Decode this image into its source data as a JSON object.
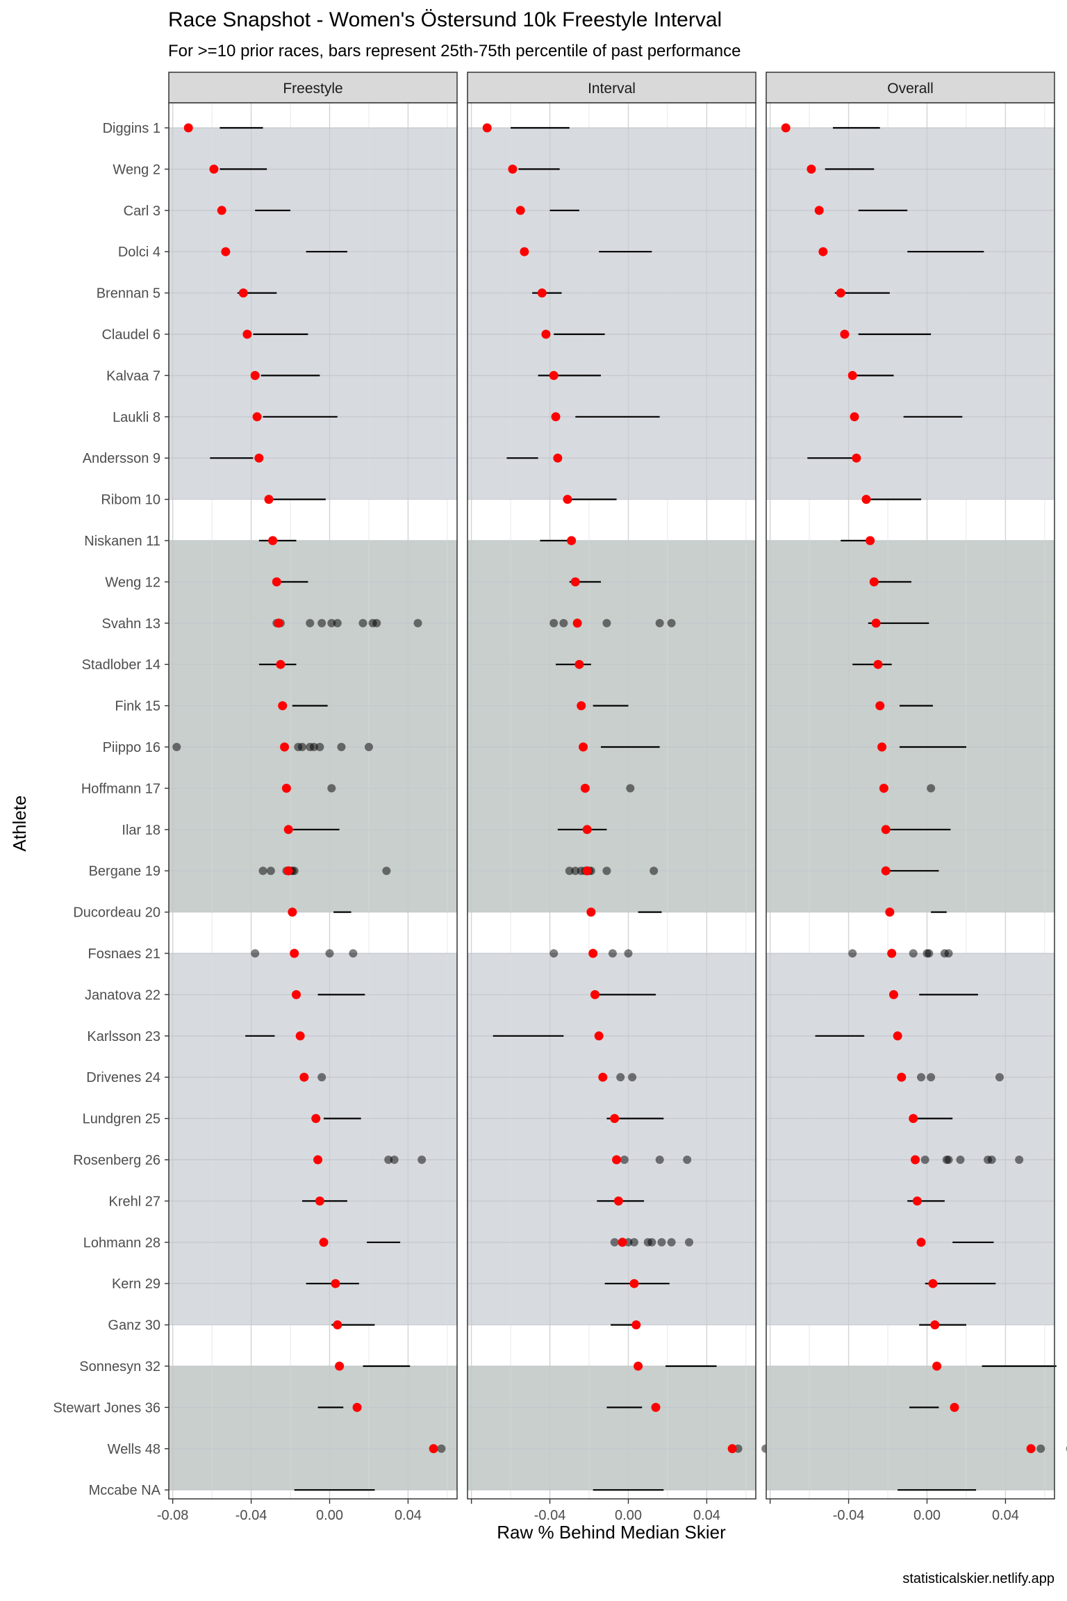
{
  "title": "Race Snapshot -  Women's Östersund 10k Freestyle Interval",
  "subtitle": "For >=10 prior races, bars represent 25th-75th percentile of past performance",
  "caption": "statisticalskier.netlify.app",
  "colors": {
    "current_point": "#ff0000",
    "past_point": "#000000",
    "band_grey": "#d7dbe0",
    "band_green": "#c8cfcd",
    "panel_border": "#333333",
    "grid": "#ebebeb",
    "strip_fill": "#d9d9d9"
  },
  "chart_data": {
    "type": "scatter",
    "xlabel": "Raw % Behind Median Skier",
    "ylabel": "Athlete",
    "xlim": [
      -0.082,
      0.065
    ],
    "x_ticks": [
      -0.08,
      -0.04,
      0.0,
      0.04
    ],
    "x_tick_labels": [
      "-0.08",
      "-0.04",
      "0.00",
      "0.04"
    ],
    "grid": true,
    "panels": [
      "Freestyle",
      "Interval",
      "Overall"
    ],
    "athletes": [
      "Diggins 1",
      "Weng 2",
      "Carl 3",
      "Dolci 4",
      "Brennan 5",
      "Claudel 6",
      "Kalvaa 7",
      "Laukli 8",
      "Andersson 9",
      "Ribom 10",
      "Niskanen 11",
      "Weng 12",
      "Svahn 13",
      "Stadlober 14",
      "Fink 15",
      "Piippo 16",
      "Hoffmann 17",
      "Ilar 18",
      "Bergane 19",
      "Ducordeau 20",
      "Fosnaes 21",
      "Janatova 22",
      "Karlsson 23",
      "Drivenes 24",
      "Lundgren 25",
      "Rosenberg 26",
      "Krehl 27",
      "Lohmann 28",
      "Kern 29",
      "Ganz 30",
      "Sonnesyn 32",
      "Stewart Jones 36",
      "Wells 48",
      "Mccabe NA"
    ],
    "bands": [
      {
        "from": 0,
        "to": 9,
        "color": "grey"
      },
      {
        "from": 10,
        "to": 19,
        "color": "green"
      },
      {
        "from": 20,
        "to": 29,
        "color": "grey"
      },
      {
        "from": 30,
        "to": 33,
        "color": "green"
      }
    ],
    "current": [
      -0.072,
      -0.059,
      -0.055,
      -0.053,
      -0.044,
      -0.042,
      -0.038,
      -0.037,
      -0.036,
      -0.031,
      -0.029,
      -0.027,
      -0.026,
      -0.025,
      -0.024,
      -0.023,
      -0.022,
      -0.021,
      -0.021,
      -0.019,
      -0.018,
      -0.017,
      -0.015,
      -0.013,
      -0.007,
      -0.006,
      -0.005,
      -0.003,
      0.003,
      0.004,
      0.005,
      0.014,
      0.053,
      null
    ],
    "ranges": {
      "Freestyle": [
        [
          -0.056,
          -0.034
        ],
        [
          -0.056,
          -0.032
        ],
        [
          -0.038,
          -0.02
        ],
        [
          -0.012,
          0.009
        ],
        [
          -0.047,
          -0.027
        ],
        [
          -0.039,
          -0.011
        ],
        [
          -0.035,
          -0.005
        ],
        [
          -0.034,
          0.004
        ],
        [
          -0.061,
          -0.039
        ],
        [
          -0.033,
          -0.002
        ],
        [
          -0.036,
          -0.017
        ],
        [
          -0.027,
          -0.011
        ],
        null,
        [
          -0.036,
          -0.017
        ],
        [
          -0.019,
          -0.001
        ],
        null,
        null,
        [
          -0.021,
          0.005
        ],
        null,
        [
          0.002,
          0.011
        ],
        null,
        [
          -0.006,
          0.018
        ],
        [
          -0.043,
          -0.028
        ],
        null,
        [
          -0.003,
          0.016
        ],
        null,
        [
          -0.014,
          0.009
        ],
        [
          0.019,
          0.036
        ],
        [
          -0.012,
          0.015
        ],
        [
          0.001,
          0.023
        ],
        [
          0.017,
          0.041
        ],
        [
          -0.006,
          0.007
        ],
        null,
        [
          -0.018,
          0.023
        ]
      ],
      "Interval": [
        [
          -0.06,
          -0.03
        ],
        [
          -0.056,
          -0.035
        ],
        [
          -0.04,
          -0.025
        ],
        [
          -0.015,
          0.012
        ],
        [
          -0.049,
          -0.034
        ],
        [
          -0.038,
          -0.012
        ],
        [
          -0.046,
          -0.014
        ],
        [
          -0.027,
          0.016
        ],
        [
          -0.062,
          -0.046
        ],
        [
          -0.033,
          -0.006
        ],
        [
          -0.045,
          -0.03
        ],
        [
          -0.03,
          -0.014
        ],
        null,
        [
          -0.037,
          -0.019
        ],
        [
          -0.018,
          0.0
        ],
        [
          -0.014,
          0.016
        ],
        null,
        [
          -0.036,
          -0.011
        ],
        null,
        [
          0.005,
          0.017
        ],
        null,
        [
          -0.016,
          0.014
        ],
        [
          -0.069,
          -0.033
        ],
        null,
        [
          -0.011,
          0.018
        ],
        null,
        [
          -0.016,
          0.008
        ],
        null,
        [
          -0.012,
          0.021
        ],
        [
          -0.009,
          0.002
        ],
        [
          0.019,
          0.045
        ],
        [
          -0.011,
          0.007
        ],
        null,
        [
          -0.018,
          0.018
        ]
      ],
      "Overall": [
        [
          -0.048,
          -0.024
        ],
        [
          -0.052,
          -0.027
        ],
        [
          -0.035,
          -0.01
        ],
        [
          -0.01,
          0.029
        ],
        [
          -0.047,
          -0.019
        ],
        [
          -0.035,
          0.002
        ],
        [
          -0.04,
          -0.017
        ],
        [
          -0.012,
          0.018
        ],
        [
          -0.061,
          -0.036
        ],
        [
          -0.031,
          -0.003
        ],
        [
          -0.044,
          -0.029
        ],
        [
          -0.026,
          -0.008
        ],
        [
          -0.03,
          0.001
        ],
        [
          -0.038,
          -0.018
        ],
        [
          -0.014,
          0.003
        ],
        [
          -0.014,
          0.02
        ],
        null,
        [
          -0.022,
          0.012
        ],
        [
          -0.019,
          0.006
        ],
        [
          0.002,
          0.01
        ],
        null,
        [
          -0.004,
          0.026
        ],
        [
          -0.057,
          -0.032
        ],
        null,
        [
          -0.007,
          0.013
        ],
        null,
        [
          -0.01,
          0.009
        ],
        [
          0.013,
          0.034
        ],
        [
          -0.001,
          0.035
        ],
        [
          -0.004,
          0.02
        ],
        [
          0.028,
          0.066
        ],
        [
          -0.009,
          0.006
        ],
        null,
        [
          -0.015,
          0.025
        ]
      ]
    },
    "past_points": {
      "Freestyle": {
        "12": [
          -0.027,
          -0.025,
          -0.01,
          -0.004,
          0.001,
          0.004,
          0.017,
          0.022,
          0.024,
          0.045
        ],
        "15": [
          -0.078,
          -0.016,
          -0.014,
          -0.01,
          -0.008,
          -0.005,
          0.006,
          0.02
        ],
        "16": [
          0.001
        ],
        "18": [
          -0.034,
          -0.03,
          -0.022,
          -0.02,
          -0.019,
          -0.018,
          0.029
        ],
        "20": [
          -0.038,
          0.0,
          0.012
        ],
        "23": [
          -0.004
        ],
        "25": [
          0.03,
          0.033,
          0.047
        ],
        "32": [
          0.057
        ]
      },
      "Interval": {
        "12": [
          -0.038,
          -0.033,
          -0.011,
          0.016,
          0.022
        ],
        "16": [
          0.001
        ],
        "18": [
          -0.03,
          -0.027,
          -0.024,
          -0.022,
          -0.021,
          -0.02,
          -0.019,
          -0.011,
          0.013
        ],
        "20": [
          -0.038,
          -0.008,
          0.0
        ],
        "23": [
          -0.004,
          0.002
        ],
        "25": [
          -0.002,
          0.016,
          0.03
        ],
        "27": [
          -0.007,
          -0.003,
          0.0,
          0.003,
          0.01,
          0.012,
          0.017,
          0.022,
          0.031
        ],
        "32": [
          0.056,
          0.07
        ]
      },
      "Overall": {
        "16": [
          0.002
        ],
        "20": [
          -0.038,
          -0.007,
          0.0,
          0.001,
          0.009,
          0.011
        ],
        "23": [
          -0.003,
          0.002,
          0.037
        ],
        "25": [
          -0.001,
          0.01,
          0.011,
          0.017,
          0.031,
          0.033,
          0.047
        ],
        "32": [
          0.058,
          0.073
        ]
      }
    }
  }
}
